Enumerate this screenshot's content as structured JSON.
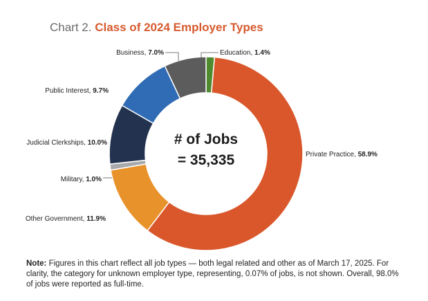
{
  "title": {
    "prefix": "Chart 2.",
    "main": "Class of 2024 Employer Types"
  },
  "center": {
    "line1": "# of Jobs",
    "line2": "= 35,335"
  },
  "note": {
    "label": "Note:",
    "text": "Figures in this chart reflect all job types — both legal related and other as of March 17, 2025. For clarity, the category for unknown employer type, representing, 0.07% of jobs, is not shown. Overall, 98.0% of jobs were reported as full-time."
  },
  "chart_data": {
    "type": "pie",
    "donut": true,
    "categories": [
      "Education",
      "Private Practice",
      "Other Government",
      "Military",
      "Judicial Clerkships",
      "Public Interest",
      "Business"
    ],
    "values": [
      1.4,
      58.9,
      11.9,
      1.0,
      10.0,
      9.7,
      7.0
    ],
    "value_labels": [
      "1.4%",
      "58.9%",
      "11.9%",
      "1.0%",
      "10.0%",
      "9.7%",
      "7.0%"
    ],
    "colors": [
      "#4e8a2e",
      "#d9572b",
      "#e8922b",
      "#a8a9ab",
      "#23324f",
      "#2f6cb5",
      "#5c5c5c"
    ],
    "label_names": [
      "Education,",
      "Private Practice,",
      "Other Government,",
      "Military,",
      "Judicial Clerkships,",
      "Public Interest,",
      "Business,"
    ]
  }
}
